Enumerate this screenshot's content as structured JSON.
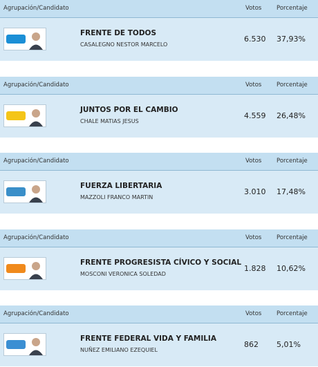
{
  "header": {
    "group": "Agrupación/Candidato",
    "votes": "Votos",
    "percent": "Porcentaje"
  },
  "results": [
    {
      "party": "FRENTE DE TODOS",
      "candidate": "CASALEGNO NESTOR MARCELO",
      "votes": "6.530",
      "percent": "37,93%"
    },
    {
      "party": "JUNTOS POR EL CAMBIO",
      "candidate": "CHALE MATIAS JESUS",
      "votes": "4.559",
      "percent": "26,48%"
    },
    {
      "party": "FUERZA LIBERTARIA",
      "candidate": "MAZZOLI FRANCO MARTIN",
      "votes": "3.010",
      "percent": "17,48%"
    },
    {
      "party": "FRENTE PROGRESISTA CÍVICO Y SOCIAL",
      "candidate": "MOSCONI VERONICA SOLEDAD",
      "votes": "1.828",
      "percent": "10,62%"
    },
    {
      "party": "FRENTE FEDERAL VIDA Y FAMILIA",
      "candidate": "NUÑEZ EMILIANO EZEQUIEL",
      "votes": "862",
      "percent": "5,01%"
    }
  ]
}
